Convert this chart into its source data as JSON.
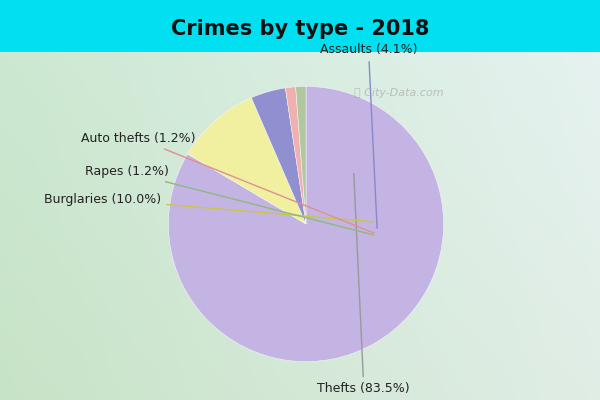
{
  "title": "Crimes by type - 2018",
  "labels": [
    "Thefts",
    "Burglaries",
    "Assaults",
    "Auto thefts",
    "Rapes"
  ],
  "values": [
    83.5,
    10.0,
    4.1,
    1.2,
    1.2
  ],
  "colors": [
    "#c4b4e4",
    "#f0f0a0",
    "#9090d0",
    "#f0b0b0",
    "#b0c8a0"
  ],
  "annotation_labels": [
    "Thefts (83.5%)",
    "Burglaries (10.0%)",
    "Assaults (4.1%)",
    "Auto thefts (1.2%)",
    "Rapes (1.2%)"
  ],
  "annotation_colors": [
    "#888888",
    "#c8c860",
    "#8888cc",
    "#e08080",
    "#88aa80"
  ],
  "background_top": "#00e0f0",
  "background_grad_topleft": "#d8f0f0",
  "background_grad_bottomleft": "#c0e0c0",
  "title_fontsize": 15,
  "label_fontsize": 9,
  "startangle": 90
}
